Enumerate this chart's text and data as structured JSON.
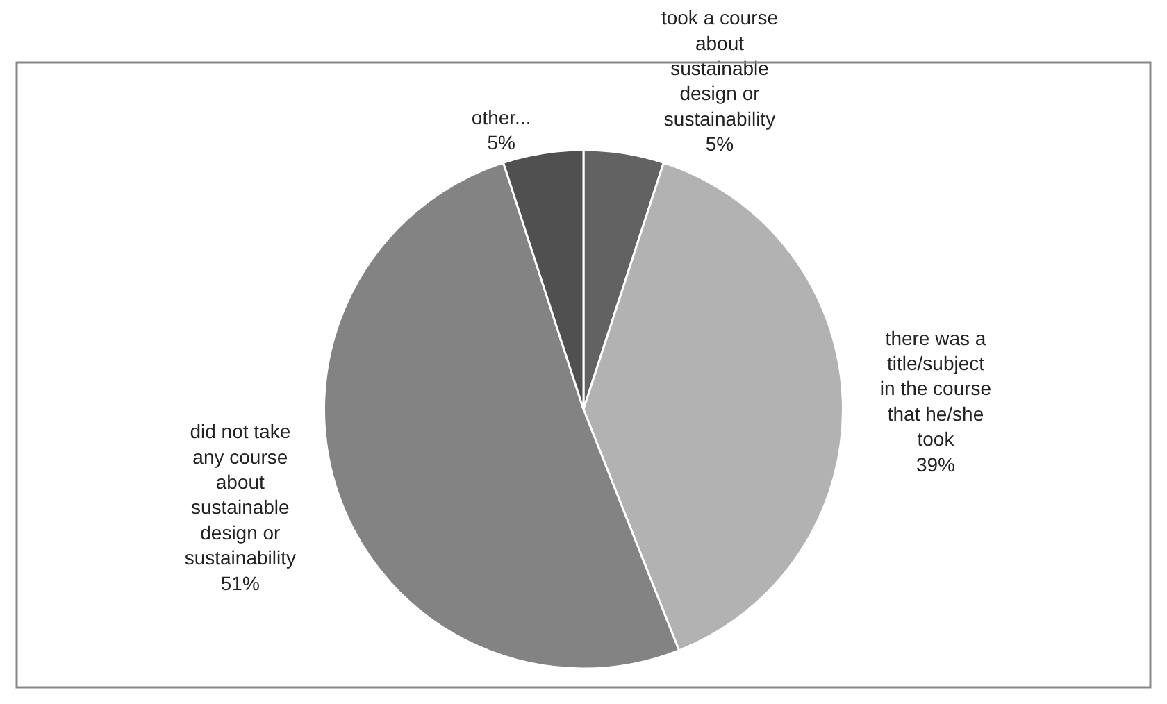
{
  "chart_data": {
    "type": "pie",
    "categories": [
      "took a course about sustainable design or sustainability",
      "there was a title/subject in the course that he/she took",
      "did not take any course about sustainable design or sustainability",
      "other..."
    ],
    "values": [
      5,
      39,
      51,
      5
    ],
    "value_labels": [
      "5%",
      "39%",
      "51%",
      "5%"
    ],
    "colors": [
      "#626262",
      "#b2b2b2",
      "#838383",
      "#505050"
    ],
    "legend": false
  }
}
